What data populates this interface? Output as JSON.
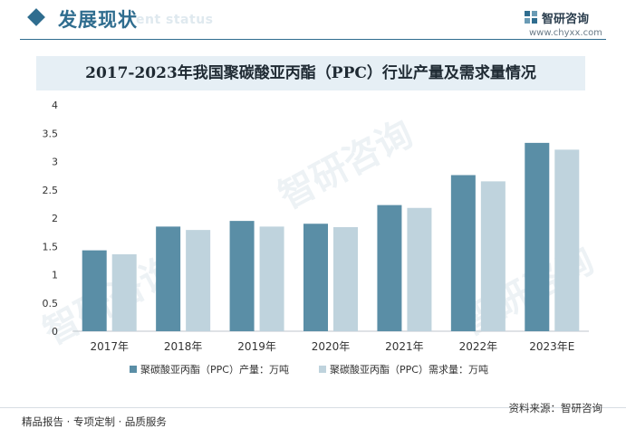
{
  "header": {
    "section_title": "发展现状",
    "section_subtitle": "ent status",
    "brand_name": "智研咨询",
    "brand_url": "www.chyxx.com",
    "brand_color": "#2f6d8f"
  },
  "chart_data": {
    "type": "bar",
    "title": "2017-2023年我国聚碳酸亚丙酯（PPC）行业产量及需求量情况",
    "categories": [
      "2017年",
      "2018年",
      "2019年",
      "2020年",
      "2021年",
      "2022年",
      "2023年E"
    ],
    "series": [
      {
        "name": "聚碳酸亚丙酯（PPC）产量：万吨",
        "color": "#5a8ea6",
        "values": [
          1.43,
          1.85,
          1.95,
          1.9,
          2.23,
          2.76,
          3.33
        ]
      },
      {
        "name": "聚碳酸亚丙酯（PPC）需求量：万吨",
        "color": "#bfd3dd",
        "values": [
          1.36,
          1.79,
          1.85,
          1.84,
          2.18,
          2.65,
          3.21
        ]
      }
    ],
    "ylim": [
      0,
      4
    ],
    "yticks": [
      "0",
      "0.5",
      "1",
      "1.5",
      "2",
      "2.5",
      "3",
      "3.5",
      "4"
    ],
    "grid": false,
    "legend": "bottom"
  },
  "footer": {
    "left": "精品报告 · 专项定制 · 品质服务",
    "right": "资料来源：智研咨询"
  },
  "watermark_text": "智研咨询"
}
